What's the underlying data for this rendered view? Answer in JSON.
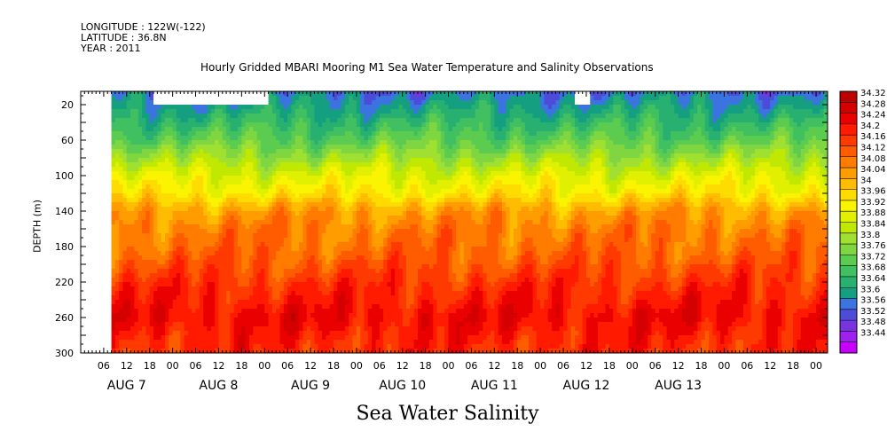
{
  "header": {
    "longitude": "LONGITUDE : 122W(-122)",
    "latitude": "LATITUDE : 36.8N",
    "year": "YEAR : 2011"
  },
  "chart_data": {
    "type": "heatmap",
    "title": "Hourly Gridded MBARI Mooring M1 Sea Water Temperature and Salinity Observations",
    "xlabel": "Sea Water Salinity",
    "ylabel": "DEPTH (m)",
    "y_ticks": [
      20,
      60,
      100,
      140,
      180,
      220,
      260,
      300
    ],
    "ylim": [
      300,
      5
    ],
    "y_inverted": true,
    "x_hour_ticks": [
      "06",
      "12",
      "18",
      "00",
      "06",
      "12",
      "18",
      "00",
      "06",
      "12",
      "18",
      "00",
      "06",
      "12",
      "18",
      "00",
      "06",
      "12",
      "18",
      "00",
      "06",
      "12",
      "18",
      "00",
      "06",
      "12",
      "18",
      "00",
      "06",
      "12",
      "18",
      "00"
    ],
    "x_hour_ticks_hours": [
      6,
      12,
      18,
      24,
      30,
      36,
      42,
      48,
      54,
      60,
      66,
      72,
      78,
      84,
      90,
      96,
      102,
      108,
      114,
      120,
      126,
      132,
      138,
      144,
      150,
      156,
      162,
      168,
      174,
      180,
      186,
      192
    ],
    "x_day_labels": [
      "AUG  7",
      "AUG  8",
      "AUG  9",
      "AUG 10",
      "AUG 11",
      "AUG 12",
      "AUG 13"
    ],
    "x_day_label_hours": [
      12,
      36,
      60,
      84,
      108,
      132,
      156
    ],
    "xlim_hours": [
      0,
      195
    ],
    "x_axis_origin": "2011-08-06T00:00",
    "data_start_hour": 8,
    "data_end_hour": 195,
    "colorbar_levels": [
      "34.32",
      "34.28",
      "34.24",
      "34.2",
      "34.16",
      "34.12",
      "34.08",
      "34.04",
      "34",
      "33.96",
      "33.92",
      "33.88",
      "33.84",
      "33.8",
      "33.76",
      "33.72",
      "33.68",
      "33.64",
      "33.6",
      "33.56",
      "33.52",
      "33.48",
      "33.44"
    ],
    "colorbar_colors": [
      "#bd0000",
      "#d40000",
      "#eb0000",
      "#ff1a00",
      "#ff3a00",
      "#ff5c00",
      "#ff7c00",
      "#ff9c00",
      "#ffbc00",
      "#ffdc00",
      "#fbf400",
      "#e0f000",
      "#c0e800",
      "#a0e030",
      "#7fd640",
      "#5ccc50",
      "#40c060",
      "#28b070",
      "#14a080",
      "#3b73e0",
      "#4c4cd8",
      "#7a33e0",
      "#a020f0",
      "#c800ff"
    ],
    "depth_profile": [
      {
        "depth": 5,
        "salinity": 33.58
      },
      {
        "depth": 20,
        "salinity": 33.62
      },
      {
        "depth": 40,
        "salinity": 33.68
      },
      {
        "depth": 60,
        "salinity": 33.74
      },
      {
        "depth": 80,
        "salinity": 33.82
      },
      {
        "depth": 100,
        "salinity": 33.9
      },
      {
        "depth": 120,
        "salinity": 33.96
      },
      {
        "depth": 140,
        "salinity": 34.06
      },
      {
        "depth": 160,
        "salinity": 34.1
      },
      {
        "depth": 180,
        "salinity": 34.12
      },
      {
        "depth": 200,
        "salinity": 34.15
      },
      {
        "depth": 220,
        "salinity": 34.19
      },
      {
        "depth": 240,
        "salinity": 34.22
      },
      {
        "depth": 260,
        "salinity": 34.25
      },
      {
        "depth": 280,
        "salinity": 34.22
      },
      {
        "depth": 300,
        "salinity": 34.2
      }
    ]
  }
}
